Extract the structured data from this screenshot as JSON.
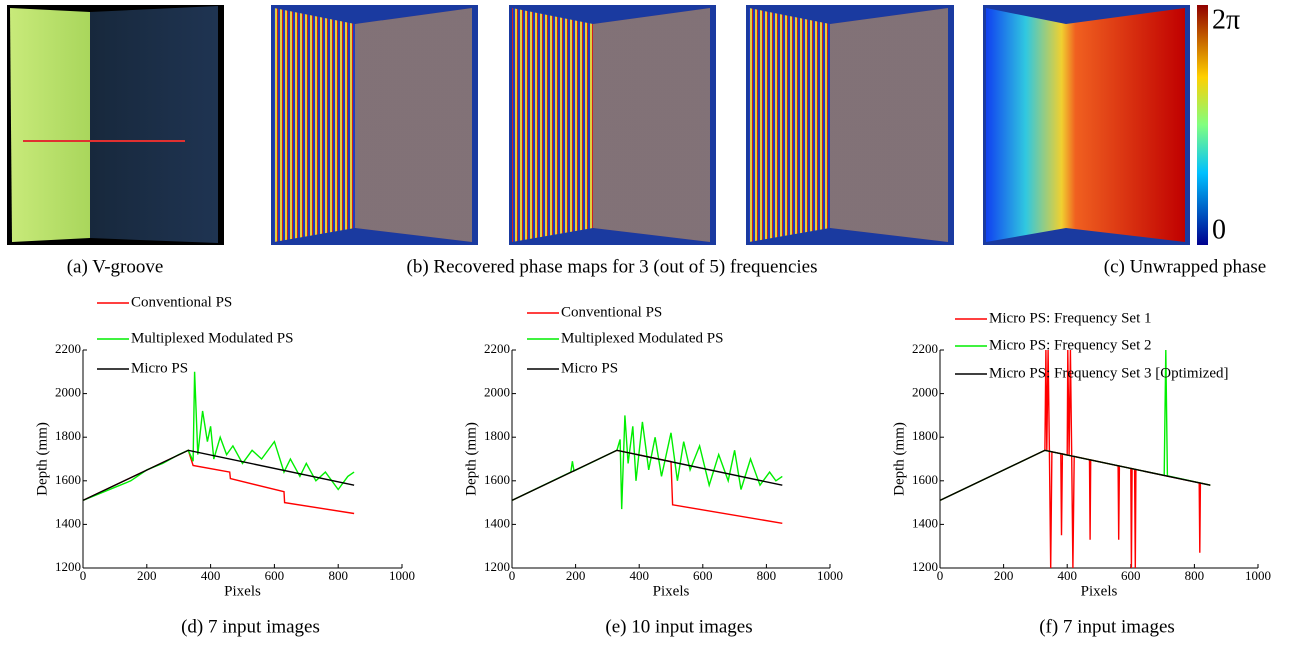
{
  "figure": {
    "captions": [
      "(a) V-groove",
      "(b) Recovered phase maps for 3 (out of 5) frequencies",
      "(c) Unwrapped phase"
    ],
    "colorbar_labels": [
      "2π",
      "0"
    ]
  },
  "chart_data": [
    {
      "type": "line",
      "caption": "(d) 7 input images",
      "xlabel": "Pixels",
      "ylabel": "Depth (mm)",
      "xlim": [
        0,
        1000
      ],
      "ylim": [
        1200,
        2200
      ],
      "xticks": [
        0,
        200,
        400,
        600,
        800,
        1000
      ],
      "yticks": [
        1200,
        1400,
        1600,
        1800,
        2000,
        2200
      ],
      "series": [
        {
          "name": "Conventional PS",
          "color": "#ff0000",
          "x": [
            0,
            330,
            345,
            460,
            462,
            630,
            632,
            850
          ],
          "values": [
            1510,
            1740,
            1670,
            1640,
            1610,
            1550,
            1500,
            1450
          ]
        },
        {
          "name": "Multiplexed Modulated PS",
          "color": "#00ee00",
          "x": [
            0,
            50,
            100,
            150,
            200,
            250,
            300,
            330,
            345,
            350,
            360,
            375,
            390,
            400,
            410,
            430,
            450,
            470,
            500,
            530,
            560,
            600,
            630,
            650,
            680,
            700,
            730,
            760,
            800,
            830,
            850
          ],
          "values": [
            1510,
            1540,
            1570,
            1600,
            1650,
            1680,
            1720,
            1740,
            1690,
            2100,
            1720,
            1920,
            1780,
            1850,
            1700,
            1800,
            1720,
            1760,
            1680,
            1740,
            1700,
            1780,
            1640,
            1700,
            1620,
            1680,
            1600,
            1640,
            1560,
            1620,
            1640
          ]
        },
        {
          "name": "Micro PS",
          "color": "#000000",
          "x": [
            0,
            330,
            850
          ],
          "values": [
            1510,
            1740,
            1580
          ]
        }
      ]
    },
    {
      "type": "line",
      "caption": "(e) 10 input images",
      "xlabel": "Pixels",
      "ylabel": "Depth (mm)",
      "xlim": [
        0,
        1000
      ],
      "ylim": [
        1200,
        2200
      ],
      "xticks": [
        0,
        200,
        400,
        600,
        800,
        1000
      ],
      "yticks": [
        1200,
        1400,
        1600,
        1800,
        2000,
        2200
      ],
      "series": [
        {
          "name": "Conventional PS",
          "color": "#ff0000",
          "x": [
            0,
            330,
            500,
            505,
            850
          ],
          "values": [
            1510,
            1740,
            1688,
            1490,
            1405
          ]
        },
        {
          "name": "Multiplexed Modulated PS",
          "color": "#00ee00",
          "x": [
            0,
            185,
            190,
            195,
            330,
            340,
            345,
            355,
            365,
            380,
            390,
            410,
            430,
            450,
            470,
            500,
            520,
            540,
            560,
            590,
            620,
            650,
            680,
            700,
            720,
            750,
            780,
            810,
            830,
            850
          ],
          "values": [
            1510,
            1640,
            1690,
            1645,
            1740,
            1790,
            1470,
            1900,
            1680,
            1850,
            1600,
            1870,
            1650,
            1800,
            1620,
            1820,
            1600,
            1780,
            1650,
            1760,
            1580,
            1720,
            1600,
            1740,
            1560,
            1700,
            1580,
            1640,
            1600,
            1620
          ]
        },
        {
          "name": "Micro PS",
          "color": "#000000",
          "x": [
            0,
            330,
            850
          ],
          "values": [
            1510,
            1740,
            1580
          ]
        }
      ]
    },
    {
      "type": "line",
      "caption": "(f) 7 input images",
      "xlabel": "Pixels",
      "ylabel": "Depth (mm)",
      "xlim": [
        0,
        1000
      ],
      "ylim": [
        1200,
        2200
      ],
      "xticks": [
        0,
        200,
        400,
        600,
        800,
        1000
      ],
      "yticks": [
        1200,
        1400,
        1600,
        1800,
        2000,
        2200
      ],
      "series": [
        {
          "name": "Micro PS: Frequency Set 1",
          "color": "#ff0000",
          "x": [
            0,
            330,
            333,
            336,
            340,
            344,
            348,
            352,
            380,
            382,
            385,
            400,
            402,
            406,
            410,
            414,
            418,
            422,
            470,
            472,
            474,
            560,
            562,
            564,
            600,
            602,
            604,
            612,
            614,
            616,
            815,
            817,
            819,
            850
          ],
          "values": [
            1510,
            1740,
            2200,
            1739,
            2200,
            1736,
            1200,
            1733,
            1725,
            1350,
            1724,
            1718,
            2200,
            1717,
            2200,
            1714,
            1200,
            1712,
            1697,
            1330,
            1696,
            1669,
            1330,
            1668,
            1657,
            1200,
            1656,
            1653,
            1200,
            1652,
            1591,
            1270,
            1590,
            1580
          ]
        },
        {
          "name": "Micro PS: Frequency Set 2",
          "color": "#00ee00",
          "x": [
            0,
            330,
            700,
            705,
            710,
            715,
            850
          ],
          "values": [
            1510,
            1740,
            1626,
            1625,
            2200,
            1623,
            1580
          ]
        },
        {
          "name": "Micro PS: Frequency Set 3 [Optimized]",
          "color": "#000000",
          "x": [
            0,
            330,
            850
          ],
          "values": [
            1510,
            1740,
            1580
          ]
        }
      ]
    }
  ]
}
